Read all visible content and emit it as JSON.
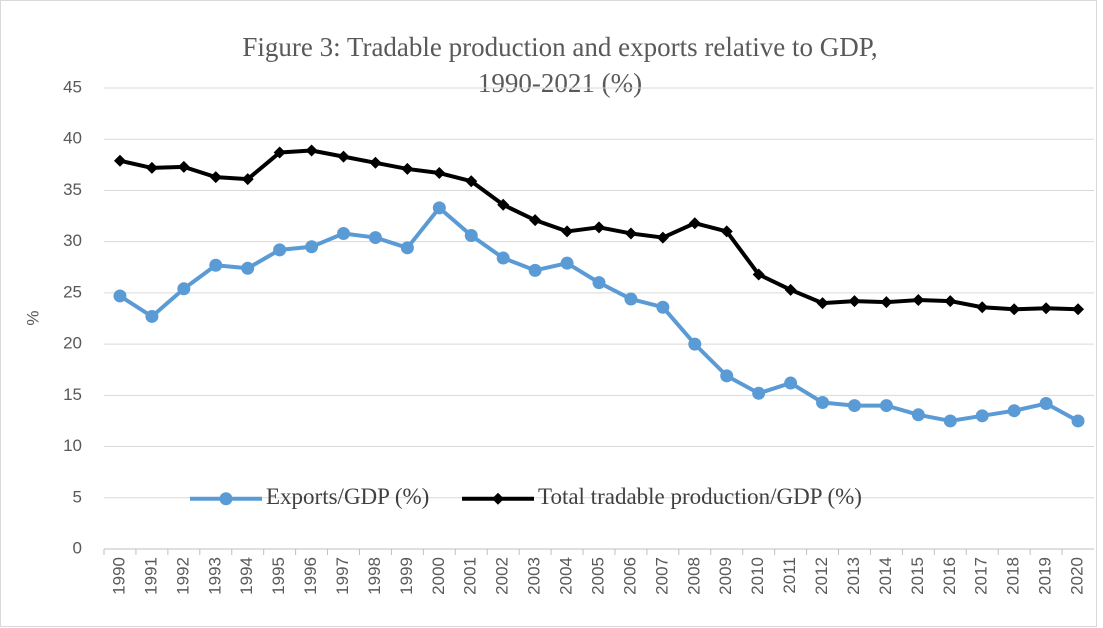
{
  "chart_data": {
    "type": "line",
    "title": [
      "Figure 3: Tradable production and exports relative to GDP,",
      "1990-2021  (%)"
    ],
    "y_label": "%",
    "categories": [
      "1990",
      "1991",
      "1992",
      "1993",
      "1994",
      "1995",
      "1996",
      "1997",
      "1998",
      "1999",
      "2000",
      "2001",
      "2002",
      "2003",
      "2004",
      "2005",
      "2006",
      "2007",
      "2008",
      "2009",
      "2010",
      "2011",
      "2012",
      "2013",
      "2014",
      "2015",
      "2016",
      "2017",
      "2018",
      "2019",
      "2020"
    ],
    "series": [
      {
        "name": "Exports/GDP (%)",
        "color": "#5b9bd5",
        "marker": "circle",
        "values": [
          24.7,
          22.7,
          25.4,
          27.7,
          27.4,
          29.2,
          29.5,
          30.8,
          30.4,
          29.4,
          33.3,
          30.6,
          28.4,
          27.2,
          27.9,
          26.0,
          24.4,
          23.6,
          20.0,
          16.9,
          15.2,
          16.2,
          14.3,
          14.0,
          14.0,
          13.1,
          12.5,
          13.0,
          13.5,
          14.2,
          12.5
        ]
      },
      {
        "name": "Total tradable production/GDP (%)",
        "color": "#000000",
        "marker": "diamond",
        "values": [
          37.9,
          37.2,
          37.3,
          36.3,
          36.1,
          38.7,
          38.9,
          38.3,
          37.7,
          37.1,
          36.7,
          35.9,
          33.6,
          32.1,
          31.0,
          31.4,
          30.8,
          30.4,
          31.8,
          31.0,
          26.8,
          25.3,
          24.0,
          24.2,
          24.1,
          24.3,
          24.2,
          23.6,
          23.4,
          23.5,
          23.4
        ]
      }
    ],
    "ylim": [
      0,
      45
    ],
    "yticks": [
      0,
      5,
      10,
      15,
      20,
      25,
      30,
      35,
      40,
      45
    ],
    "grid": true,
    "legend": "bottom"
  }
}
